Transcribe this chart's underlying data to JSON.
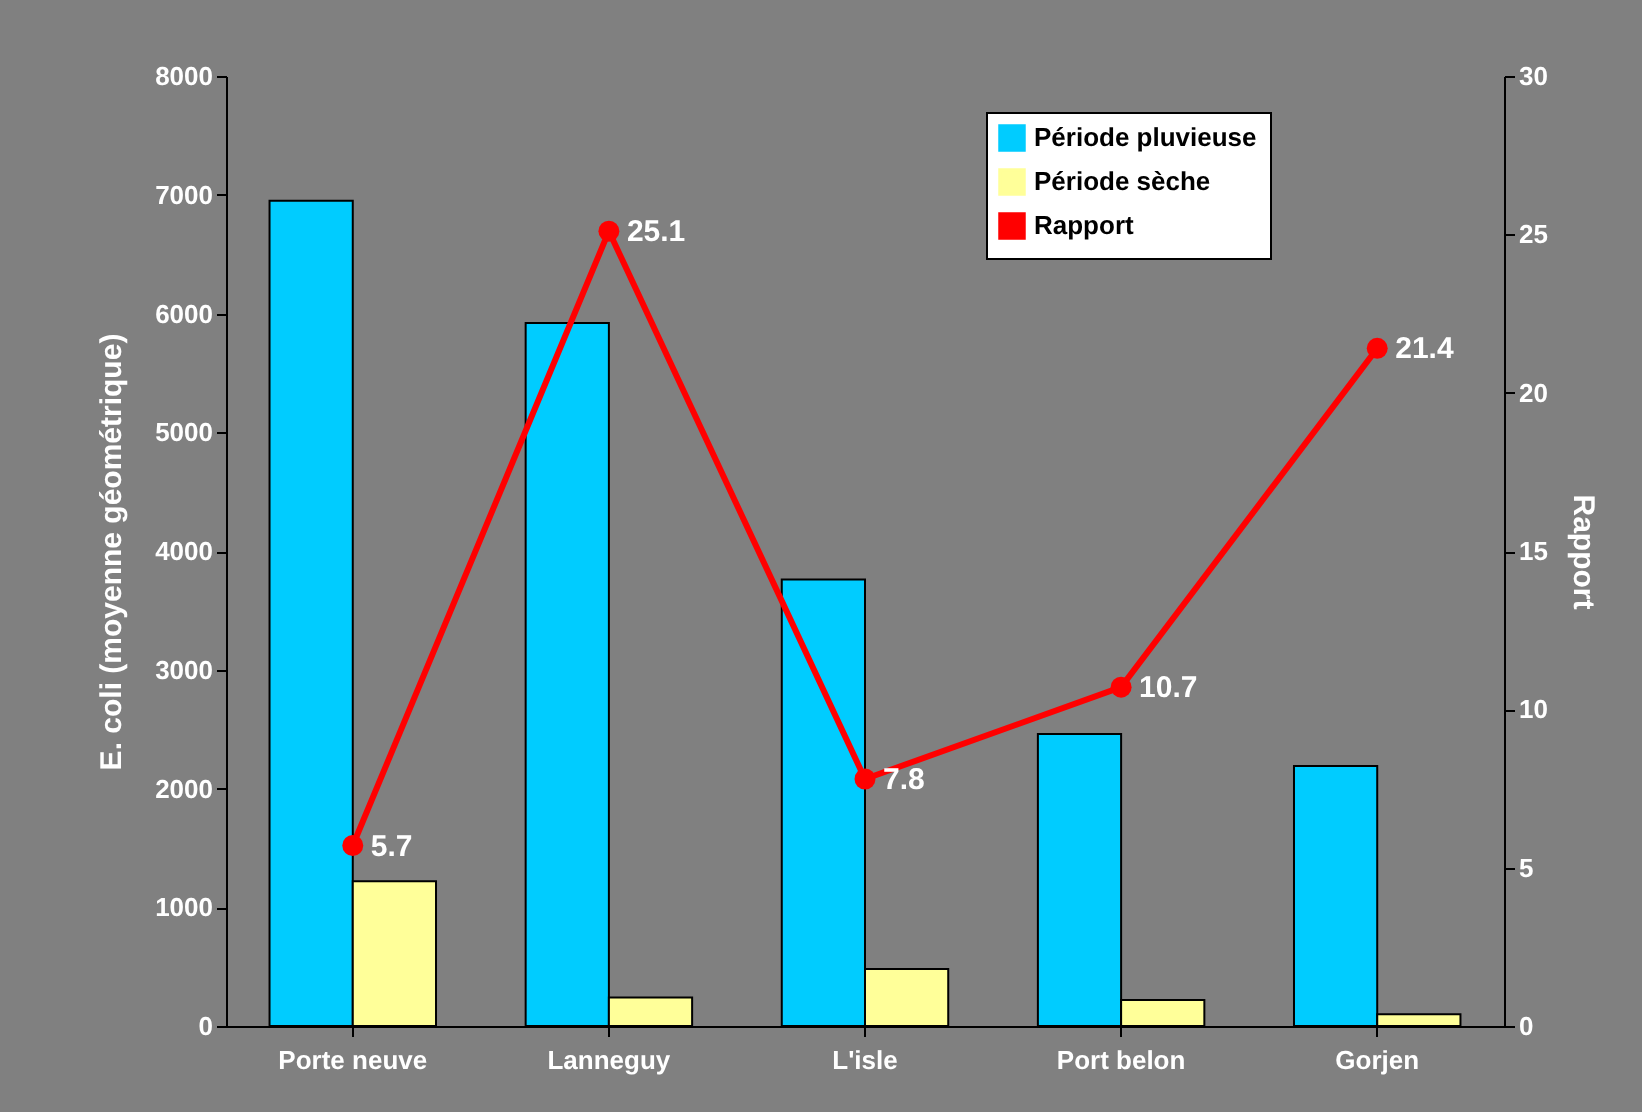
{
  "chart_data": {
    "type": "bar",
    "ylabel": "E. coli (moyenne géométrique)",
    "y2label": "Rapport",
    "categories": [
      "Porte neuve",
      "Lanneguy",
      "L'isle",
      "Port belon",
      "Gorjen"
    ],
    "series": [
      {
        "name": "Période pluvieuse",
        "color": "#00ccff",
        "values": [
          6950,
          5920,
          3760,
          2460,
          2190
        ]
      },
      {
        "name": "Période sèche",
        "color": "#ffff99",
        "values": [
          1220,
          240,
          480,
          220,
          100
        ]
      },
      {
        "name": "Rapport",
        "color": "#ff0000",
        "type": "line",
        "axis": "y2",
        "marker": "circle",
        "values": [
          5.7,
          25.1,
          7.8,
          10.7,
          21.4
        ],
        "value_labels": [
          "5.7",
          "25.1",
          "7.8",
          "10.7",
          "21.4"
        ]
      }
    ],
    "ylim": [
      0,
      8000
    ],
    "yticks": [
      0,
      1000,
      2000,
      3000,
      4000,
      5000,
      6000,
      7000,
      8000
    ],
    "y2lim": [
      0,
      30
    ],
    "y2ticks": [
      0,
      5,
      10,
      15,
      20,
      25,
      30
    ],
    "legend": "top right",
    "grid": false
  }
}
